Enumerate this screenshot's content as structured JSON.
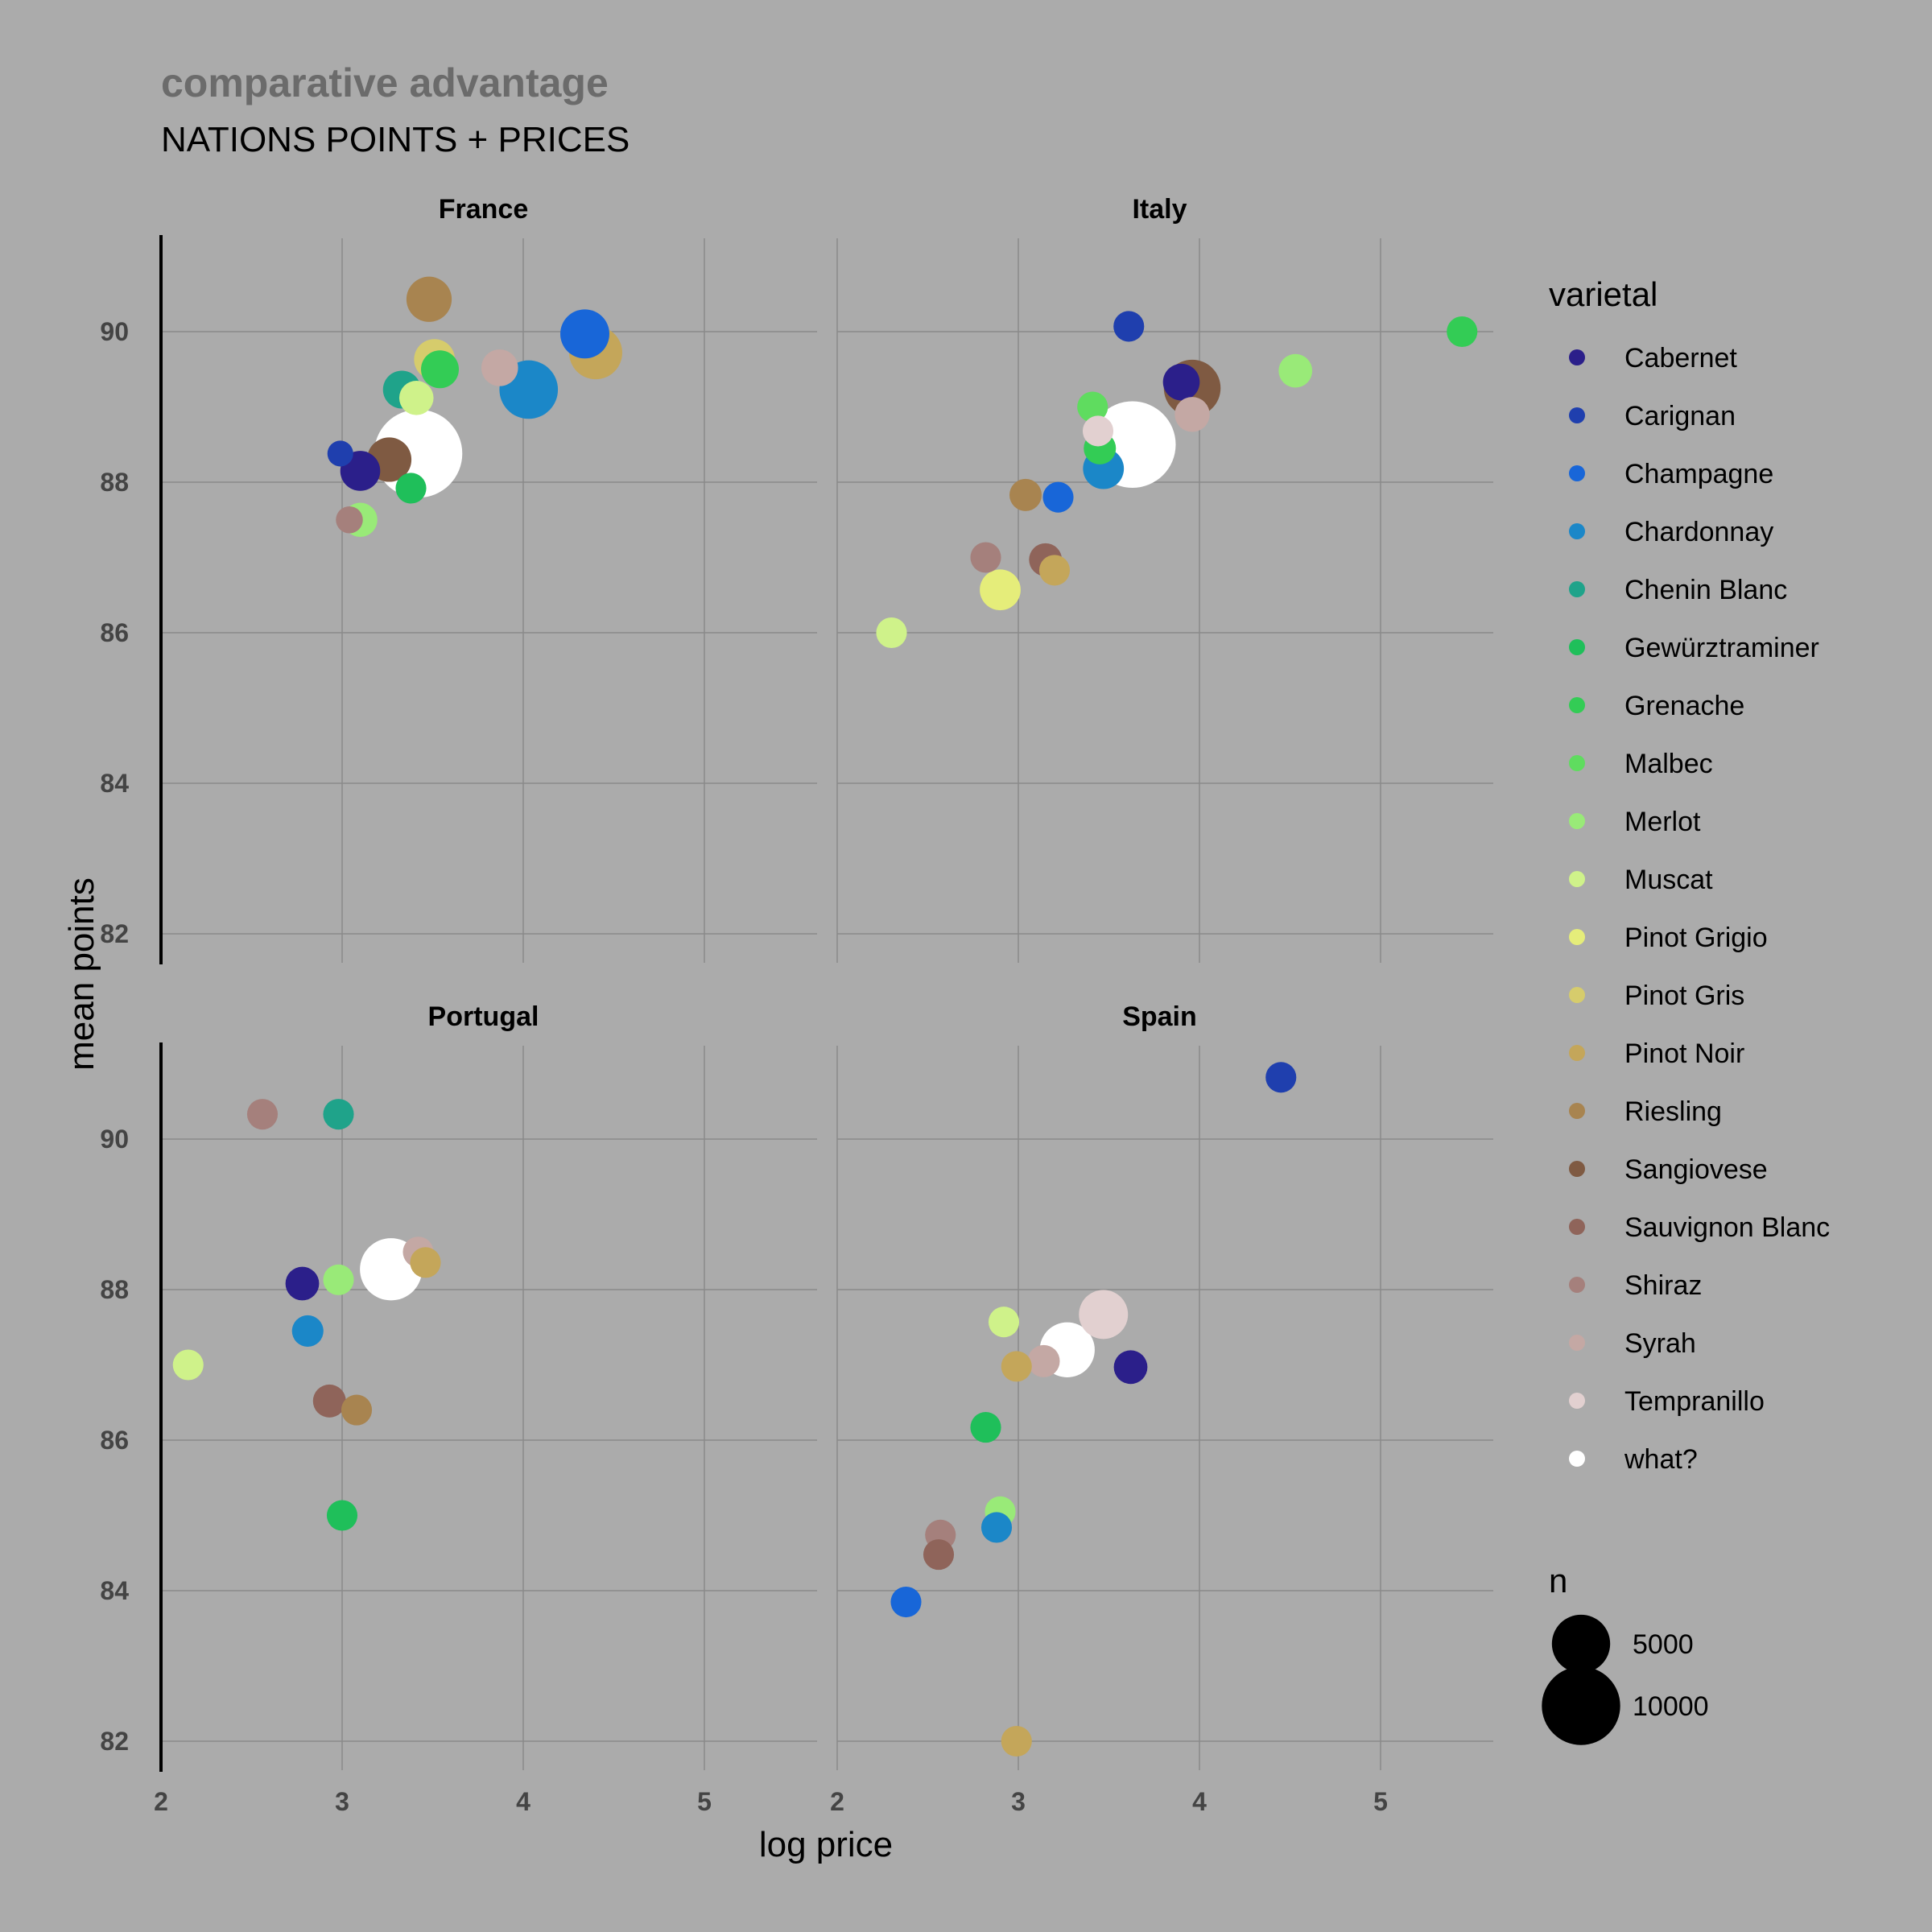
{
  "chart_data": {
    "type": "scatter",
    "title": "comparative advantage",
    "subtitle": "NATIONS POINTS + PRICES",
    "xlabel": "log price",
    "ylabel": "mean points",
    "xlim": [
      2,
      5.6
    ],
    "ylim": [
      81.5,
      91.2
    ],
    "x_ticks": [
      "2",
      "3",
      "4",
      "5"
    ],
    "y_ticks": [
      "82",
      "84",
      "86",
      "88",
      "90"
    ],
    "grid": true,
    "legend_position": "right",
    "color_legend": {
      "title": "varietal",
      "items": [
        {
          "label": "Cabernet",
          "color": "#2b1f8a"
        },
        {
          "label": "Carignan",
          "color": "#1f3fae"
        },
        {
          "label": "Champagne",
          "color": "#1866d8"
        },
        {
          "label": "Chardonnay",
          "color": "#1b87c8"
        },
        {
          "label": "Chenin Blanc",
          "color": "#1fa38a"
        },
        {
          "label": "Gewürztraminer",
          "color": "#1fbf5a"
        },
        {
          "label": "Grenache",
          "color": "#33cc55"
        },
        {
          "label": "Malbec",
          "color": "#5fdc5f"
        },
        {
          "label": "Merlot",
          "color": "#99ea78"
        },
        {
          "label": "Muscat",
          "color": "#cff28a"
        },
        {
          "label": "Pinot Grigio",
          "color": "#e5ed7a"
        },
        {
          "label": "Pinot Gris",
          "color": "#d6cc6c"
        },
        {
          "label": "Pinot Noir",
          "color": "#c4a65a"
        },
        {
          "label": "Riesling",
          "color": "#a88450"
        },
        {
          "label": "Sangiovese",
          "color": "#7f5a42"
        },
        {
          "label": "Sauvignon Blanc",
          "color": "#8f645a"
        },
        {
          "label": "Shiraz",
          "color": "#a5807c"
        },
        {
          "label": "Syrah",
          "color": "#c4a8a4"
        },
        {
          "label": "Tempranillo",
          "color": "#e2d0d0"
        },
        {
          "label": "what?",
          "color": "#ffffff"
        }
      ]
    },
    "size_legend": {
      "title": "n",
      "items": [
        {
          "label": "5000",
          "n": 5000
        },
        {
          "label": "10000",
          "n": 10000
        }
      ]
    },
    "panels": [
      {
        "name": "France",
        "points": [
          {
            "varietal": "Carignan",
            "x": 2.99,
            "y": 88.38,
            "n": 200
          },
          {
            "varietal": "Cabernet",
            "x": 3.1,
            "y": 88.15,
            "n": 1200
          },
          {
            "varietal": "Shiraz",
            "x": 3.04,
            "y": 87.5,
            "n": 250
          },
          {
            "varietal": "Merlot",
            "x": 3.1,
            "y": 87.5,
            "n": 700
          },
          {
            "varietal": "Sangiovese",
            "x": 3.26,
            "y": 88.3,
            "n": 1700
          },
          {
            "varietal": "Chenin Blanc",
            "x": 3.33,
            "y": 89.23,
            "n": 1000
          },
          {
            "varietal": "Gewürztraminer",
            "x": 3.38,
            "y": 87.92,
            "n": 450
          },
          {
            "varietal": "Muscat",
            "x": 3.41,
            "y": 89.12,
            "n": 700
          },
          {
            "varietal": "Riesling",
            "x": 3.48,
            "y": 90.43,
            "n": 1800
          },
          {
            "varietal": "Pinot Gris",
            "x": 3.51,
            "y": 89.63,
            "n": 1300
          },
          {
            "varietal": "Grenache",
            "x": 3.54,
            "y": 89.5,
            "n": 1000
          },
          {
            "varietal": "what?",
            "x": 3.42,
            "y": 88.38,
            "n": 11000
          },
          {
            "varietal": "Syrah",
            "x": 3.87,
            "y": 89.52,
            "n": 900
          },
          {
            "varietal": "Chardonnay",
            "x": 4.03,
            "y": 89.23,
            "n": 3800
          },
          {
            "varietal": "Champagne",
            "x": 4.34,
            "y": 89.97,
            "n": 2300
          },
          {
            "varietal": "Pinot Noir",
            "x": 4.4,
            "y": 89.72,
            "n": 2900
          }
        ]
      },
      {
        "name": "Italy",
        "points": [
          {
            "varietal": "Carignan",
            "x": 3.61,
            "y": 90.07,
            "n": 450
          },
          {
            "varietal": "Cabernet",
            "x": 3.9,
            "y": 89.33,
            "n": 900
          },
          {
            "varietal": "Sangiovese",
            "x": 3.96,
            "y": 89.25,
            "n": 3500
          },
          {
            "varietal": "Syrah",
            "x": 3.96,
            "y": 88.9,
            "n": 750
          },
          {
            "varietal": "Malbec",
            "x": 3.41,
            "y": 89.0,
            "n": 450
          },
          {
            "varietal": "Tempranillo",
            "x": 3.44,
            "y": 88.68,
            "n": 450
          },
          {
            "varietal": "Grenache",
            "x": 3.45,
            "y": 88.45,
            "n": 550
          },
          {
            "varietal": "Chardonnay",
            "x": 3.47,
            "y": 88.18,
            "n": 1300
          },
          {
            "varietal": "what?",
            "x": 3.63,
            "y": 88.5,
            "n": 10500
          },
          {
            "varietal": "Riesling",
            "x": 3.04,
            "y": 87.83,
            "n": 550
          },
          {
            "varietal": "Champagne",
            "x": 3.22,
            "y": 87.8,
            "n": 450
          },
          {
            "varietal": "Shiraz",
            "x": 2.82,
            "y": 87.0,
            "n": 450
          },
          {
            "varietal": "Sauvignon Blanc",
            "x": 3.15,
            "y": 86.97,
            "n": 600
          },
          {
            "varietal": "Pinot Noir",
            "x": 3.2,
            "y": 86.83,
            "n": 450
          },
          {
            "varietal": "Pinot Grigio",
            "x": 2.9,
            "y": 86.57,
            "n": 1300
          },
          {
            "varietal": "Muscat",
            "x": 2.3,
            "y": 86.0,
            "n": 450
          },
          {
            "varietal": "Merlot",
            "x": 4.53,
            "y": 89.48,
            "n": 650
          },
          {
            "varietal": "Grenache",
            "x": 5.45,
            "y": 90.0,
            "n": 450
          }
        ]
      },
      {
        "name": "Portugal",
        "points": [
          {
            "varietal": "Shiraz",
            "x": 2.56,
            "y": 90.33,
            "n": 450
          },
          {
            "varietal": "Chenin Blanc",
            "x": 2.98,
            "y": 90.33,
            "n": 450
          },
          {
            "varietal": "Cabernet",
            "x": 2.78,
            "y": 88.08,
            "n": 650
          },
          {
            "varietal": "Merlot",
            "x": 2.98,
            "y": 88.13,
            "n": 450
          },
          {
            "varietal": "Chardonnay",
            "x": 2.81,
            "y": 87.45,
            "n": 500
          },
          {
            "varietal": "Muscat",
            "x": 2.15,
            "y": 87.0,
            "n": 450
          },
          {
            "varietal": "Sauvignon Blanc",
            "x": 2.93,
            "y": 86.52,
            "n": 600
          },
          {
            "varietal": "Riesling",
            "x": 3.08,
            "y": 86.4,
            "n": 450
          },
          {
            "varietal": "Gewürztraminer",
            "x": 3.0,
            "y": 85.0,
            "n": 450
          },
          {
            "varietal": "Syrah",
            "x": 3.42,
            "y": 88.5,
            "n": 450
          },
          {
            "varietal": "Pinot Noir",
            "x": 3.46,
            "y": 88.36,
            "n": 450
          },
          {
            "varietal": "what?",
            "x": 3.27,
            "y": 88.27,
            "n": 4500
          }
        ]
      },
      {
        "name": "Spain",
        "points": [
          {
            "varietal": "Carignan",
            "x": 4.45,
            "y": 90.82,
            "n": 450
          },
          {
            "varietal": "Tempranillo",
            "x": 3.47,
            "y": 87.67,
            "n": 2300
          },
          {
            "varietal": "what?",
            "x": 3.27,
            "y": 87.2,
            "n": 3200
          },
          {
            "varietal": "Cabernet",
            "x": 3.62,
            "y": 86.97,
            "n": 650
          },
          {
            "varietal": "Muscat",
            "x": 2.92,
            "y": 87.57,
            "n": 450
          },
          {
            "varietal": "Pinot Noir",
            "x": 2.99,
            "y": 86.98,
            "n": 450
          },
          {
            "varietal": "Syrah",
            "x": 3.14,
            "y": 87.05,
            "n": 550
          },
          {
            "varietal": "Gewürztraminer",
            "x": 2.82,
            "y": 86.17,
            "n": 450
          },
          {
            "varietal": "Merlot",
            "x": 2.9,
            "y": 85.05,
            "n": 450
          },
          {
            "varietal": "Chardonnay",
            "x": 2.88,
            "y": 84.84,
            "n": 450
          },
          {
            "varietal": "Shiraz",
            "x": 2.57,
            "y": 84.74,
            "n": 450
          },
          {
            "varietal": "Sauvignon Blanc",
            "x": 2.56,
            "y": 84.48,
            "n": 450
          },
          {
            "varietal": "Champagne",
            "x": 2.38,
            "y": 83.85,
            "n": 450
          },
          {
            "varietal": "Pinot Noir",
            "x": 2.99,
            "y": 82.0,
            "n": 450
          }
        ]
      }
    ]
  }
}
